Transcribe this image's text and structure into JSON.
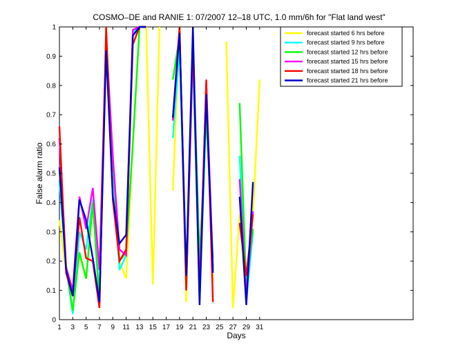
{
  "chart_data": {
    "type": "line",
    "title": "COSMO–DE and RANIE 1: 07/2007 12–18 UTC, 1.0 mm/6h for \"Flat land west\"",
    "xlabel": "Days",
    "ylabel": "False alarm ratio",
    "xlim": [
      1,
      54
    ],
    "ylim": [
      0,
      1
    ],
    "xticks": [
      1,
      3,
      5,
      7,
      9,
      11,
      13,
      15,
      17,
      19,
      21,
      23,
      25,
      27,
      29,
      31
    ],
    "xtick_labels": [
      "1",
      "3",
      "5",
      "7",
      "9",
      "11",
      "13",
      "15",
      "17",
      "19",
      "21",
      "23",
      "25",
      "27",
      "29",
      "31"
    ],
    "yticks": [
      0,
      0.1,
      0.2,
      0.3,
      0.4,
      0.5,
      0.6,
      0.7,
      0.8,
      0.9,
      1
    ],
    "ytick_labels": [
      "0",
      "0.1",
      "0.2",
      "0.3",
      "0.4",
      "0.5",
      "0.6",
      "0.7",
      "0.8",
      "0.9",
      "1"
    ],
    "legend_position": "top-right",
    "x": [
      1,
      2,
      3,
      4,
      5,
      6,
      7,
      8,
      9,
      10,
      11,
      12,
      13,
      14,
      15,
      16,
      17,
      18,
      19,
      20,
      21,
      22,
      23,
      24,
      25,
      26,
      27,
      28,
      29,
      30,
      31
    ],
    "series": [
      {
        "name": "forecast started 6 hrs before",
        "color": "#ffff00",
        "values": [
          0.34,
          0.16,
          0.09,
          0.22,
          0.14,
          0.38,
          0.18,
          1.0,
          0.53,
          0.2,
          0.14,
          0.6,
          1.0,
          1.0,
          0.12,
          1.0,
          null,
          0.44,
          1.0,
          0.06,
          0.96,
          0.05,
          0.75,
          0.13,
          null,
          0.95,
          0.04,
          0.36,
          0.05,
          0.36,
          0.82
        ]
      },
      {
        "name": "forecast started 9 hrs before",
        "color": "#00ffff",
        "values": [
          0.47,
          0.18,
          0.02,
          0.3,
          0.24,
          0.41,
          0.08,
          0.95,
          0.52,
          0.17,
          0.22,
          0.98,
          1.0,
          1.0,
          null,
          null,
          null,
          0.62,
          0.93,
          0.1,
          0.9,
          0.06,
          0.72,
          0.17,
          null,
          null,
          null,
          0.56,
          0.06,
          0.3,
          null
        ]
      },
      {
        "name": "forecast started 12 hrs before",
        "color": "#00ff00",
        "values": [
          0.51,
          0.18,
          0.03,
          0.23,
          0.14,
          0.4,
          0.06,
          0.97,
          0.55,
          0.2,
          0.23,
          0.6,
          1.0,
          1.0,
          null,
          null,
          null,
          0.82,
          0.97,
          0.11,
          0.96,
          0.2,
          0.7,
          0.21,
          null,
          null,
          null,
          0.74,
          0.11,
          0.31,
          null
        ]
      },
      {
        "name": "forecast started 15 hrs before",
        "color": "#ff00ff",
        "values": [
          0.62,
          0.18,
          0.1,
          0.42,
          0.31,
          0.45,
          0.17,
          0.96,
          0.56,
          0.24,
          0.22,
          0.99,
          1.0,
          1.0,
          null,
          null,
          null,
          0.68,
          0.99,
          0.11,
          0.93,
          0.1,
          0.81,
          0.18,
          null,
          null,
          null,
          0.48,
          0.08,
          0.37,
          null
        ]
      },
      {
        "name": "forecast started 18 hrs before",
        "color": "#ff0000",
        "values": [
          0.66,
          0.16,
          0.08,
          0.35,
          0.21,
          0.2,
          0.04,
          1.0,
          0.41,
          0.2,
          0.24,
          0.94,
          1.0,
          1.0,
          null,
          null,
          null,
          0.69,
          1.0,
          0.1,
          0.97,
          0.07,
          0.82,
          0.06,
          null,
          null,
          null,
          0.33,
          0.15,
          0.36,
          null
        ]
      },
      {
        "name": "forecast started 21 hrs before",
        "color": "#0000cc",
        "values": [
          0.52,
          0.17,
          0.08,
          0.41,
          0.34,
          0.21,
          0.06,
          0.92,
          0.42,
          0.26,
          0.29,
          0.97,
          1.0,
          1.0,
          null,
          null,
          null,
          0.69,
          0.98,
          0.15,
          1.0,
          0.05,
          0.77,
          0.16,
          null,
          null,
          null,
          0.42,
          0.05,
          0.47,
          null
        ]
      }
    ]
  }
}
